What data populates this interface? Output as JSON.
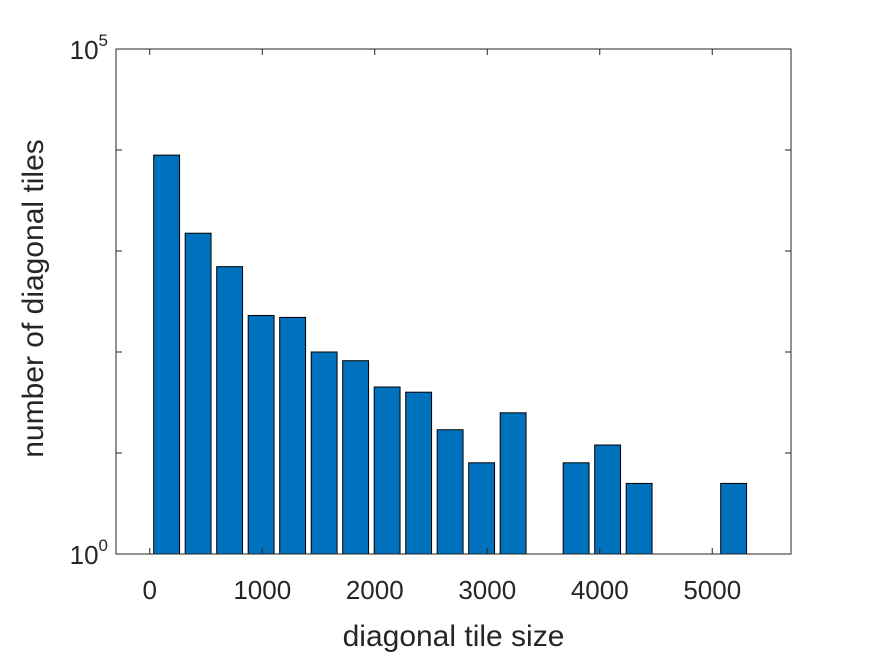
{
  "chart_data": {
    "type": "bar",
    "title": "",
    "xlabel": "diagonal tile size",
    "ylabel": "number of diagonal tiles",
    "yscale": "log",
    "ylim": [
      1,
      100000
    ],
    "xlim": [
      -300,
      5700
    ],
    "grid": false,
    "legend": "none",
    "bar_color": "#0072BD",
    "edge_color": "#000000",
    "bar_width": 230,
    "x": [
      150,
      430,
      710,
      990,
      1270,
      1550,
      1830,
      2110,
      2390,
      2670,
      2950,
      3230,
      3790,
      4070,
      4350,
      5190
    ],
    "values": [
      8900,
      1500,
      700,
      230,
      220,
      100,
      82,
      45,
      40,
      17,
      8,
      25,
      8,
      12,
      5,
      5
    ],
    "x_ticks": [
      {
        "value": 0,
        "label": "0"
      },
      {
        "value": 1000,
        "label": "1000"
      },
      {
        "value": 2000,
        "label": "2000"
      },
      {
        "value": 3000,
        "label": "3000"
      },
      {
        "value": 4000,
        "label": "4000"
      },
      {
        "value": 5000,
        "label": "5000"
      }
    ],
    "y_ticks": [
      {
        "value": 1,
        "base": "10",
        "exp": "0"
      },
      {
        "value": 100000,
        "base": "10",
        "exp": "5"
      }
    ],
    "y_minor_ticks": [
      10,
      100,
      1000,
      10000
    ]
  }
}
